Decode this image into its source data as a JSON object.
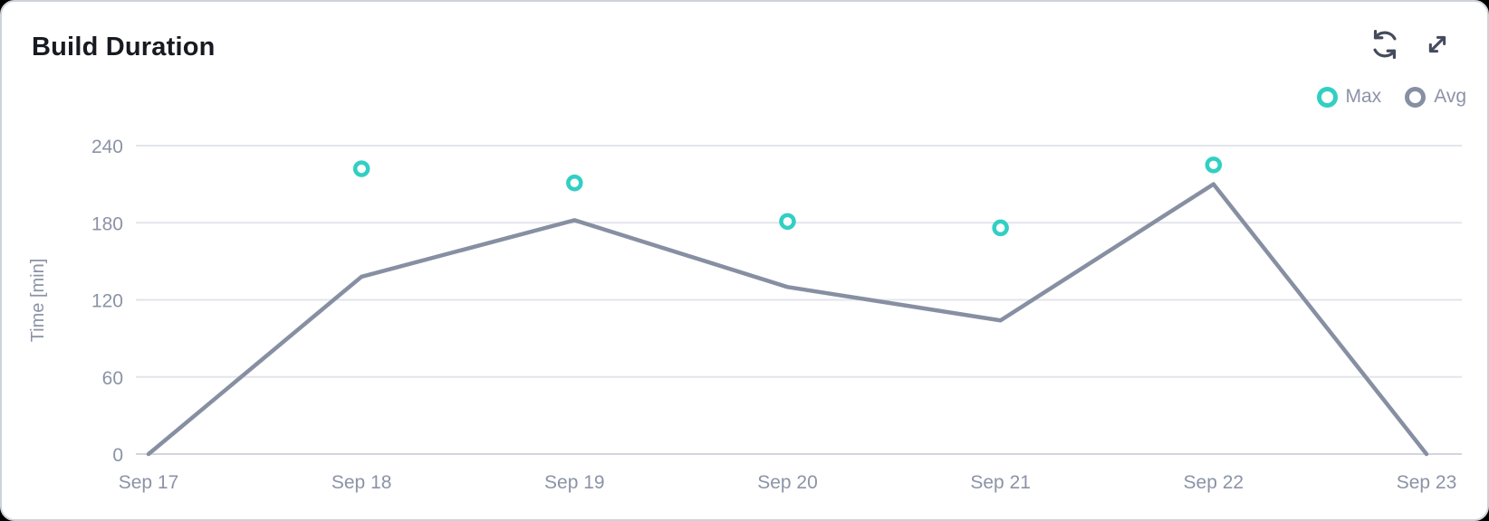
{
  "header": {
    "title": "Build Duration",
    "actions": [
      {
        "label": "refresh",
        "icon": "refresh-icon"
      },
      {
        "label": "expand",
        "icon": "expand-icon"
      }
    ]
  },
  "chart_data": {
    "type": "line",
    "title": "Build Duration",
    "categories": [
      "Sep 17",
      "Sep 18",
      "Sep 19",
      "Sep 20",
      "Sep 21",
      "Sep 22",
      "Sep 23"
    ],
    "series": [
      {
        "name": "Max",
        "type": "scatter",
        "color": "#31cfc4",
        "values": [
          null,
          222,
          211,
          181,
          176,
          225,
          null
        ]
      },
      {
        "name": "Avg",
        "type": "line",
        "color": "#878fa2",
        "values": [
          0,
          138,
          182,
          130,
          104,
          210,
          0
        ]
      }
    ],
    "xlabel": "",
    "ylabel": "Time [min]",
    "ylim": [
      0,
      240
    ],
    "yticks": [
      0,
      60,
      120,
      180,
      240
    ],
    "grid": true,
    "legend_position": "top-right"
  },
  "colors": {
    "card_background": "#ffffff",
    "page_background": "#000000",
    "card_border": "#ced2d9",
    "grid_line": "#e3e5eb",
    "zero_line": "#d2d5dc",
    "axis_text": "#8b93a6",
    "title_text": "#171a21",
    "icon": "#444b5c"
  }
}
